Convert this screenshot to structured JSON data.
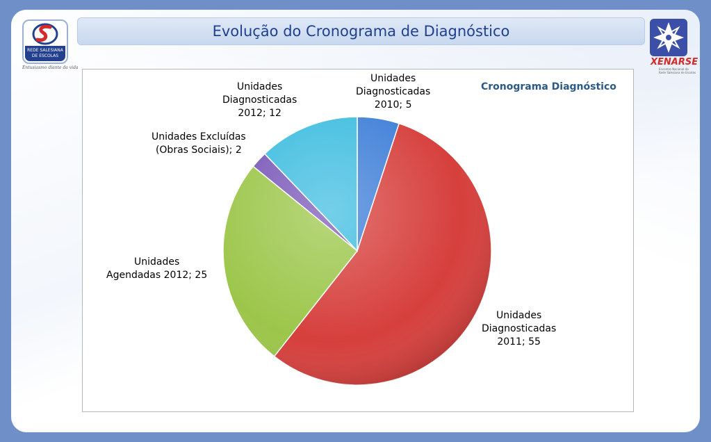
{
  "slide": {
    "title": "Evolução do Cronograma de Diagnóstico"
  },
  "logo_left": {
    "line1": "REDE SALESIANA",
    "line2": "DE ESCOLAS",
    "tagline": "Entusiasmo diante da vida"
  },
  "logo_right": {
    "brand": "ENARSE",
    "numeral": "X",
    "sub1": "Encontro Nacional da",
    "sub2": "Rede Salesiana de Escolas"
  },
  "colors": {
    "background": "#6f8fc9",
    "title_text": "#1f3f8f",
    "chart_title": "#2c5a86"
  },
  "chart_data": {
    "type": "pie",
    "title": "Cronograma Diagnóstico",
    "start_angle_deg": 0,
    "slices": [
      {
        "label_lines": [
          "Unidades",
          "Diagnosticadas",
          "2010; 5"
        ],
        "value": 5,
        "color": "#3f7fd8"
      },
      {
        "label_lines": [
          "Unidades",
          "Diagnosticadas",
          "2011; 55"
        ],
        "value": 55,
        "color": "#d63f3c"
      },
      {
        "label_lines": [
          "Unidades",
          "Agendadas 2012; 25"
        ],
        "value": 25,
        "color": "#9cc64a"
      },
      {
        "label_lines": [
          "Unidades Excluídas",
          "(Obras Sociais); 2"
        ],
        "value": 2,
        "color": "#7a58b8"
      },
      {
        "label_lines": [
          "Unidades",
          "Diagnosticadas",
          "2012; 12"
        ],
        "value": 12,
        "color": "#3fbde0"
      }
    ]
  }
}
